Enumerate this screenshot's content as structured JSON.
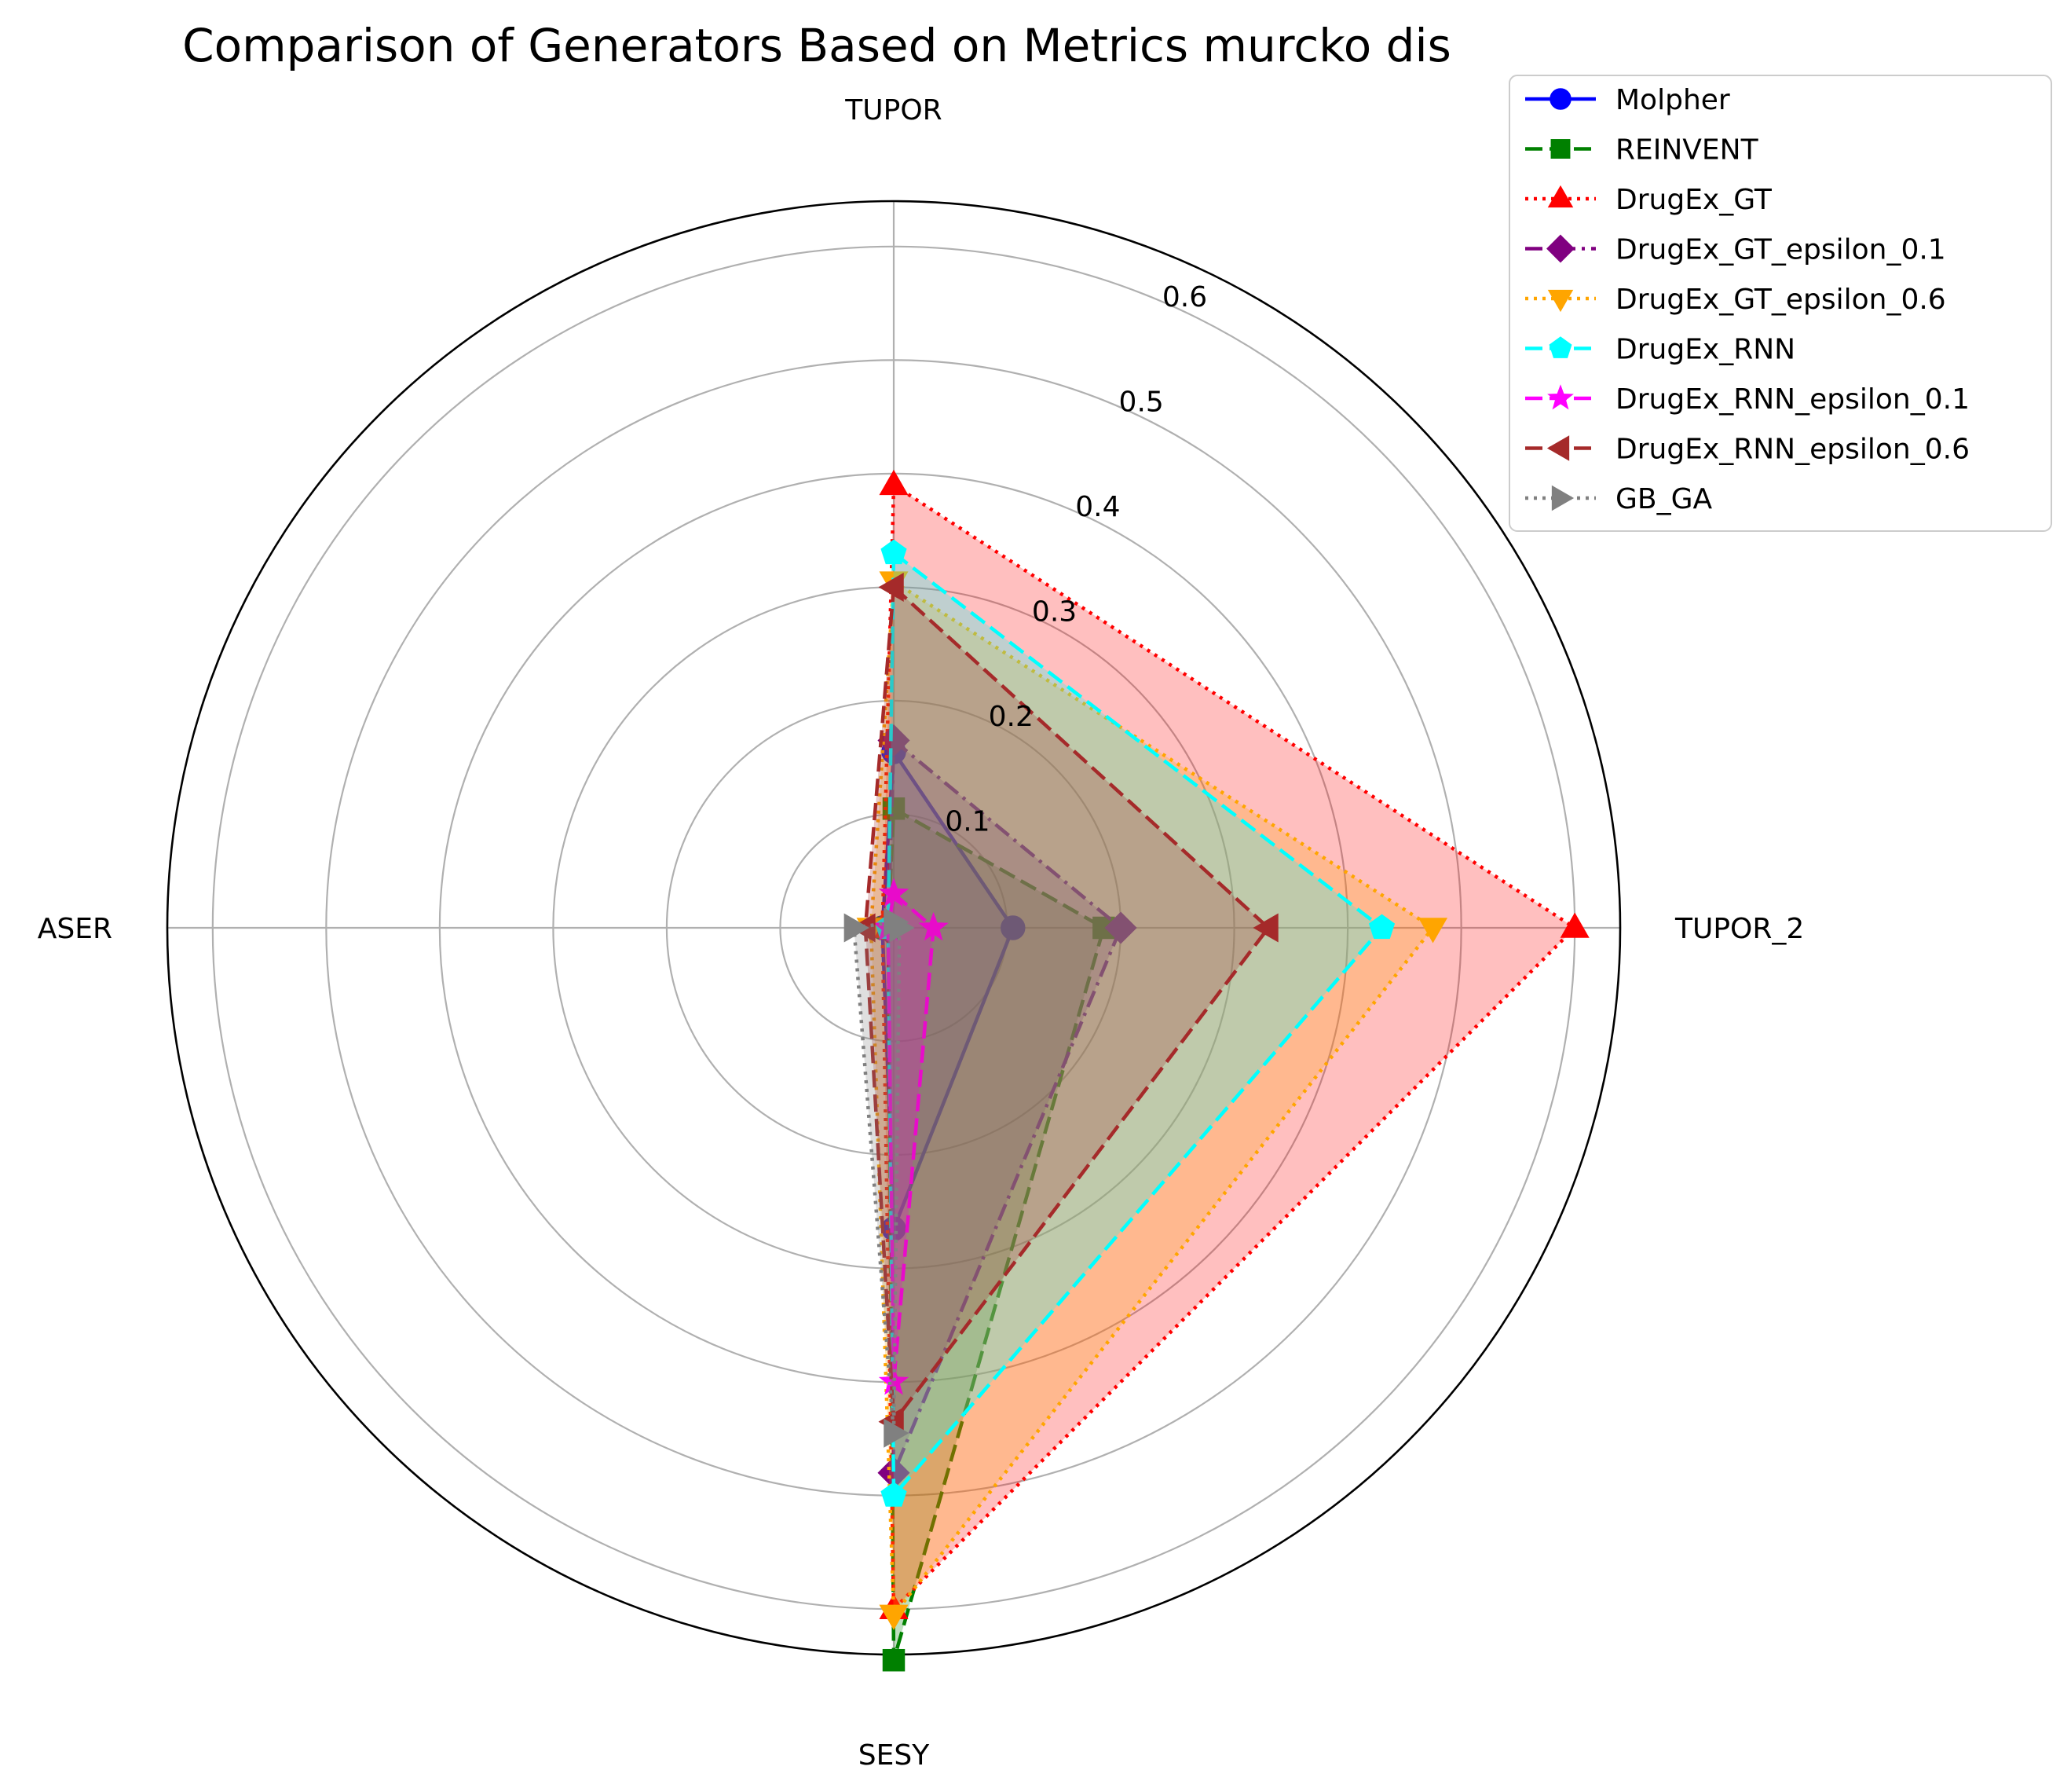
{
  "chart_data": {
    "type": "radar",
    "title": "Comparison of Generators Based on Metrics murcko dis",
    "axes": [
      "TUPOR",
      "TUPOR_2",
      "SESY",
      "ASER"
    ],
    "rlim": [
      0,
      0.64
    ],
    "rticks": [
      "0.1",
      "0.2",
      "0.3",
      "0.4",
      "0.5",
      "0.6"
    ],
    "rtick_values": [
      0.1,
      0.2,
      0.3,
      0.4,
      0.5,
      0.6
    ],
    "grid": true,
    "legend_position": "top-right",
    "series": [
      {
        "name": "Molpher",
        "values": [
          0.155,
          0.105,
          0.265,
          0.01
        ],
        "color": "#0000ff",
        "marker": "circle",
        "dash": "solid",
        "fill": "#0000ff"
      },
      {
        "name": "REINVENT",
        "values": [
          0.105,
          0.185,
          0.645,
          0.005
        ],
        "color": "#008000",
        "marker": "square",
        "dash": "dashed",
        "fill": "#008000"
      },
      {
        "name": "DrugEx_GT",
        "values": [
          0.39,
          0.6,
          0.6,
          0.01
        ],
        "color": "#ff0000",
        "marker": "triangle-up",
        "dash": "dotted",
        "fill": "#ff0000"
      },
      {
        "name": "DrugEx_GT_epsilon_0.1",
        "values": [
          0.165,
          0.2,
          0.48,
          0.005
        ],
        "color": "#800080",
        "marker": "diamond",
        "dash": "dashdot",
        "fill": "#800080"
      },
      {
        "name": "DrugEx_GT_epsilon_0.6",
        "values": [
          0.305,
          0.475,
          0.605,
          0.02
        ],
        "color": "#ffa500",
        "marker": "triangle-down",
        "dash": "dotted",
        "fill": "#ffa500"
      },
      {
        "name": "DrugEx_RNN",
        "values": [
          0.33,
          0.43,
          0.5,
          0.005
        ],
        "color": "#00ffff",
        "marker": "pentagon",
        "dash": "dashed",
        "fill": "#00ffff"
      },
      {
        "name": "DrugEx_RNN_epsilon_0.1",
        "values": [
          0.03,
          0.035,
          0.4,
          0.005
        ],
        "color": "#ff00ff",
        "marker": "star",
        "dash": "dashed",
        "fill": "#ff00ff"
      },
      {
        "name": "DrugEx_RNN_epsilon_0.6",
        "values": [
          0.3,
          0.33,
          0.435,
          0.025
        ],
        "color": "#a52a2a",
        "marker": "triangle-left",
        "dash": "dashed",
        "fill": "#a52a2a"
      },
      {
        "name": "GB_GA",
        "values": [
          0.005,
          0.005,
          0.445,
          0.035
        ],
        "color": "#808080",
        "marker": "triangle-right",
        "dash": "dotted",
        "fill": "#808080"
      }
    ]
  }
}
